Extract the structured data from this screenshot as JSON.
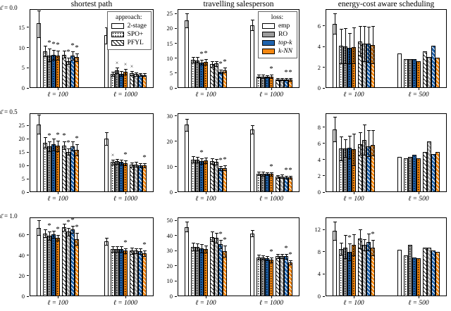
{
  "figure": {
    "column_titles": [
      "shortest path",
      "travelling salesperson",
      "energy-cost aware scheduling"
    ],
    "row_labels": [
      "ε̄ = 0.0",
      "ε̄ = 0.5",
      "ε̄ = 1.0"
    ]
  },
  "colors": {
    "blue": "#1f63ad",
    "orange": "#f5870f",
    "gray": "#9c9c9c",
    "white": "#ffffff",
    "edge": "#000000"
  },
  "bar_series_order": [
    "2-stage",
    "SPO+ emp",
    "SPO+ RO",
    "SPO+ top-k",
    "SPO+ k-NN",
    "PFYL emp",
    "PFYL RO",
    "PFYL top-k",
    "PFYL k-NN"
  ],
  "legend_approach": {
    "title": "approach:",
    "entries": [
      {
        "label": "2-stage",
        "style": "plain"
      },
      {
        "label": "SPO+",
        "style": "dots"
      },
      {
        "label": "PFYL",
        "style": "diag"
      }
    ]
  },
  "legend_loss": {
    "title": "loss:",
    "entries": [
      {
        "label": "emp",
        "color": "#ffffff",
        "italic": false
      },
      {
        "label": "RO",
        "color": "#9c9c9c",
        "italic": false
      },
      {
        "label": "top-k",
        "color": "#1f63ad",
        "italic": true
      },
      {
        "label": "k-NN",
        "color": "#f5870f",
        "italic": true
      }
    ]
  },
  "chart_data": [
    {
      "type": "bar",
      "row": 0,
      "col": 0,
      "title": "shortest path",
      "row_label": "ε̄ = 0.0",
      "legend": "approach",
      "yticks": [
        0,
        5,
        10,
        15
      ],
      "ymax": 19.5,
      "groups": [
        {
          "label": "ℓ = 100",
          "values": [
            16.0,
            9.0,
            8.0,
            8.1,
            8.0,
            8.2,
            6.6,
            8.0,
            7.6
          ],
          "err_lo": [
            12.6,
            7.9,
            6.7,
            6.9,
            6.9,
            7.4,
            5.9,
            7.0,
            6.6
          ],
          "err_hi": [
            19.2,
            10.5,
            9.7,
            9.4,
            9.2,
            9.3,
            7.5,
            9.0,
            8.6
          ],
          "marks": [
            "",
            "",
            "*",
            "*",
            "*",
            "",
            "*",
            "*",
            "*"
          ]
        },
        {
          "label": "ℓ = 1000",
          "values": [
            13.0,
            3.4,
            4.3,
            3.5,
            4.0,
            3.6,
            3.4,
            3.3,
            3.2
          ],
          "err_lo": [
            11.0,
            2.9,
            3.6,
            3.0,
            3.3,
            3.1,
            3.0,
            2.9,
            2.9
          ],
          "err_hi": [
            15.0,
            4.0,
            5.0,
            4.1,
            4.7,
            4.2,
            3.9,
            3.7,
            3.6
          ],
          "marks": [
            "",
            "",
            "x",
            "",
            "x",
            "x",
            "",
            "",
            ""
          ]
        }
      ]
    },
    {
      "type": "bar",
      "row": 0,
      "col": 1,
      "title": "travelling salesperson",
      "legend": "loss",
      "yticks": [
        0,
        5,
        10,
        15,
        20,
        25
      ],
      "ymax": 26.5,
      "groups": [
        {
          "label": "ℓ = 100",
          "values": [
            22.7,
            9.5,
            9.3,
            8.5,
            8.8,
            8.0,
            8.2,
            5.5,
            6.0
          ],
          "err_lo": [
            20.3,
            8.6,
            8.4,
            7.7,
            7.9,
            7.2,
            7.4,
            4.9,
            5.3
          ],
          "err_hi": [
            25.0,
            10.5,
            10.3,
            9.4,
            9.8,
            8.9,
            9.0,
            6.2,
            6.8
          ],
          "marks": [
            "",
            "",
            "",
            "*",
            "*",
            "",
            "",
            "*",
            "*"
          ]
        },
        {
          "label": "ℓ = 1000",
          "values": [
            21.0,
            3.9,
            3.9,
            3.9,
            3.9,
            2.8,
            2.9,
            2.9,
            2.8
          ],
          "err_lo": [
            19.4,
            3.5,
            3.4,
            3.5,
            3.3,
            2.5,
            2.6,
            2.5,
            2.4
          ],
          "err_hi": [
            22.9,
            4.4,
            4.4,
            4.3,
            4.5,
            3.2,
            3.3,
            3.3,
            3.2
          ],
          "marks": [
            "",
            "",
            "",
            "",
            "*",
            "",
            "",
            "*",
            "*"
          ]
        }
      ]
    },
    {
      "type": "bar",
      "row": 0,
      "col": 2,
      "title": "energy-cost aware scheduling",
      "yticks": [
        0,
        2,
        4,
        6
      ],
      "ymax": 7.6,
      "groups": [
        {
          "label": "ℓ = 100",
          "values": [
            6.2,
            4.05,
            4.0,
            3.85,
            3.95,
            4.5,
            4.25,
            4.25,
            4.15
          ],
          "err_lo": [
            5.2,
            2.4,
            2.4,
            2.4,
            2.4,
            3.1,
            2.6,
            2.5,
            2.4
          ],
          "err_hi": [
            7.2,
            5.7,
            5.75,
            5.3,
            5.85,
            6.0,
            6.0,
            5.9,
            5.95
          ],
          "marks": [
            "",
            "",
            "",
            "",
            "",
            "",
            "",
            "",
            ""
          ]
        },
        {
          "label": "ℓ = 500",
          "values": [
            3.3,
            2.75,
            2.75,
            2.8,
            2.55,
            3.5,
            3.0,
            4.1,
            2.9
          ],
          "err_lo": null,
          "err_hi": null,
          "marks": [
            "",
            "",
            "",
            "",
            "",
            "",
            "",
            "",
            ""
          ]
        }
      ]
    },
    {
      "type": "bar",
      "row": 1,
      "col": 0,
      "row_label": "ε̄ = 0.5",
      "yticks": [
        0,
        5,
        10,
        15,
        20,
        25
      ],
      "ymax": 29.5,
      "groups": [
        {
          "label": "ℓ = 100",
          "values": [
            25.3,
            18.5,
            17.0,
            17.8,
            17.3,
            17.5,
            15.0,
            17.2,
            15.8
          ],
          "err_lo": [
            21.8,
            16.5,
            15.2,
            15.6,
            15.4,
            16.0,
            14.0,
            15.5,
            13.6
          ],
          "err_hi": [
            29.0,
            20.5,
            19.0,
            20.0,
            19.3,
            19.0,
            16.2,
            19.0,
            18.0
          ],
          "marks": [
            "",
            "",
            "*",
            "",
            "*",
            "*",
            "*",
            "",
            "*"
          ]
        },
        {
          "label": "ℓ = 1000",
          "values": [
            20.0,
            11.2,
            11.5,
            11.2,
            10.9,
            10.2,
            10.4,
            10.1,
            10.0
          ],
          "err_lo": [
            17.7,
            10.4,
            10.6,
            10.3,
            10.0,
            9.4,
            9.6,
            9.3,
            9.2
          ],
          "err_hi": [
            22.4,
            12.1,
            12.4,
            12.0,
            11.9,
            11.0,
            11.3,
            10.9,
            10.8
          ],
          "marks": [
            "",
            "x",
            "",
            "",
            "*",
            "",
            "",
            "",
            "*"
          ]
        }
      ]
    },
    {
      "type": "bar",
      "row": 1,
      "col": 1,
      "yticks": [
        0,
        10,
        20,
        30
      ],
      "ymax": 31,
      "groups": [
        {
          "label": "ℓ = 100",
          "values": [
            26.5,
            12.8,
            12.7,
            12.1,
            12.5,
            12.1,
            11.8,
            9.4,
            9.5
          ],
          "err_lo": [
            24.2,
            11.7,
            11.6,
            11.1,
            11.4,
            11.0,
            10.8,
            8.5,
            8.5
          ],
          "err_hi": [
            28.9,
            14.0,
            13.8,
            13.2,
            13.7,
            13.2,
            12.9,
            10.3,
            10.5
          ],
          "marks": [
            "",
            "",
            "",
            "*",
            "",
            "",
            "",
            "*",
            "*"
          ]
        },
        {
          "label": "ℓ = 1000",
          "values": [
            24.5,
            7.2,
            7.2,
            7.2,
            7.1,
            6.1,
            6.2,
            5.7,
            5.8
          ],
          "err_lo": [
            23.0,
            6.6,
            6.5,
            6.6,
            6.4,
            5.6,
            5.6,
            5.2,
            5.2
          ],
          "err_hi": [
            26.3,
            7.9,
            7.9,
            7.8,
            7.8,
            6.7,
            6.8,
            6.3,
            6.4
          ],
          "marks": [
            "",
            "",
            "",
            "",
            "*",
            "",
            "",
            "*",
            "*"
          ]
        }
      ]
    },
    {
      "type": "bar",
      "row": 1,
      "col": 2,
      "yticks": [
        0,
        2,
        4,
        6,
        8
      ],
      "ymax": 9.7,
      "groups": [
        {
          "label": "ℓ = 100",
          "values": [
            7.75,
            5.4,
            5.35,
            5.45,
            5.25,
            5.9,
            6.4,
            5.65,
            5.8
          ],
          "err_lo": [
            6.2,
            3.9,
            4.3,
            4.2,
            3.3,
            4.6,
            4.6,
            4.4,
            4.5
          ],
          "err_hi": [
            9.3,
            6.8,
            6.5,
            6.9,
            7.2,
            7.4,
            8.3,
            7.6,
            7.6
          ],
          "marks": [
            "",
            "",
            "",
            "",
            "",
            "",
            "",
            "",
            ""
          ]
        },
        {
          "label": "ℓ = 500",
          "values": [
            4.35,
            4.2,
            4.35,
            4.55,
            4.15,
            4.95,
            6.2,
            4.7,
            4.95
          ],
          "err_lo": null,
          "err_hi": null,
          "marks": [
            "",
            "",
            "",
            "",
            "",
            "",
            "",
            "",
            ""
          ]
        }
      ]
    },
    {
      "type": "bar",
      "row": 2,
      "col": 0,
      "row_label": "ε̄ = 1.0",
      "yticks": [
        0,
        20,
        40,
        60
      ],
      "ymax": 77,
      "groups": [
        {
          "label": "ℓ = 100",
          "values": [
            67,
            61.5,
            59,
            60.5,
            57,
            67.5,
            63,
            65.5,
            56
          ],
          "err_lo": [
            60,
            58,
            55,
            57,
            54,
            64,
            59,
            62,
            50
          ],
          "err_hi": [
            74,
            65,
            63,
            64,
            60,
            71,
            67,
            69,
            62
          ],
          "marks": [
            "",
            "",
            "*",
            "",
            "*",
            "",
            "*",
            "*",
            "*"
          ]
        },
        {
          "label": "ℓ = 1000",
          "values": [
            53.5,
            46,
            46,
            46,
            44.5,
            44.5,
            44.5,
            44,
            42
          ],
          "err_lo": [
            50,
            43,
            43,
            43.5,
            42,
            41.5,
            42,
            41.5,
            39.5
          ],
          "err_hi": [
            57,
            49,
            49,
            48.5,
            47,
            47.5,
            47,
            46.5,
            44.5
          ],
          "marks": [
            "",
            "",
            "",
            "",
            "*",
            "",
            "",
            "",
            "*"
          ]
        }
      ]
    },
    {
      "type": "bar",
      "row": 2,
      "col": 1,
      "yticks": [
        0,
        10,
        20,
        30,
        40,
        50
      ],
      "ymax": 52,
      "groups": [
        {
          "label": "ℓ = 100",
          "values": [
            45.5,
            32.5,
            32.5,
            31.5,
            31,
            39,
            38.7,
            34.3,
            29.7
          ],
          "err_lo": [
            42.5,
            30,
            30,
            29,
            29,
            36,
            35.5,
            31.5,
            26
          ],
          "err_hi": [
            49,
            35.5,
            35,
            34.5,
            33.5,
            42.5,
            42,
            37,
            33.5
          ],
          "marks": [
            "",
            "",
            "",
            "",
            "",
            "",
            "",
            "*",
            "*"
          ]
        },
        {
          "label": "ℓ = 1000",
          "values": [
            41.5,
            25.5,
            25.5,
            25,
            24,
            26.5,
            26.5,
            26.3,
            22.3
          ],
          "err_lo": [
            39.5,
            24,
            24,
            23.5,
            22.5,
            25,
            25,
            24.8,
            21
          ],
          "err_hi": [
            43.5,
            27.3,
            27,
            26.5,
            25.5,
            28,
            28,
            27.8,
            23.7
          ],
          "marks": [
            "",
            "",
            "",
            "",
            "*",
            "",
            "",
            "*",
            "*"
          ]
        }
      ]
    },
    {
      "type": "bar",
      "row": 2,
      "col": 2,
      "yticks": [
        0,
        4,
        8,
        12
      ],
      "ymax": 14.2,
      "groups": [
        {
          "label": "ℓ = 100",
          "values": [
            11.8,
            8.5,
            8.8,
            8.0,
            9.3,
            10.4,
            9.3,
            9.8,
            8.7
          ],
          "err_lo": [
            10.1,
            7.5,
            6.8,
            6.5,
            7.3,
            8.6,
            8.3,
            8.3,
            7.3
          ],
          "err_hi": [
            13.4,
            9.6,
            11.0,
            9.5,
            11.2,
            12.1,
            10.3,
            11.3,
            10.1
          ],
          "marks": [
            "",
            "",
            "",
            "*",
            "",
            "",
            "",
            "",
            "*"
          ]
        },
        {
          "label": "ℓ = 500",
          "values": [
            8.4,
            7.3,
            9.3,
            7.0,
            6.9,
            8.7,
            8.8,
            8.3,
            8.0
          ],
          "err_lo": null,
          "err_hi": null,
          "marks": [
            "",
            "",
            "",
            "",
            "",
            "",
            "",
            "",
            ""
          ]
        }
      ]
    }
  ]
}
